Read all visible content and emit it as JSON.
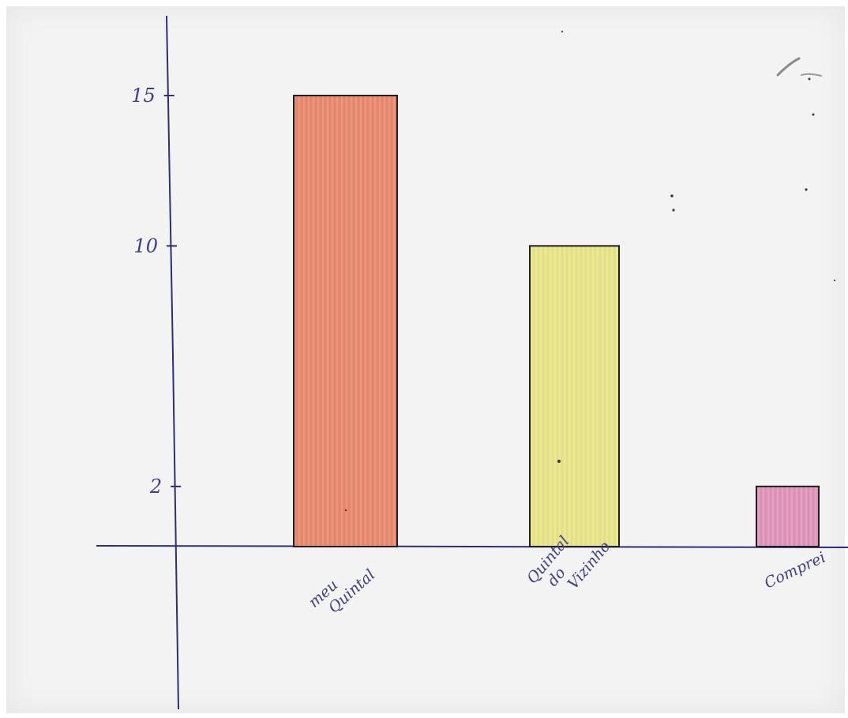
{
  "chart_data": {
    "type": "bar",
    "categories": [
      "meu Quintal",
      "Quintal do Vizinho",
      "Comprei"
    ],
    "values": [
      15,
      10,
      2
    ],
    "ytick_labels": [
      "15",
      "10",
      "2"
    ],
    "title": "",
    "xlabel": "",
    "ylabel": "",
    "ylim": [
      0,
      19
    ],
    "grid": false,
    "legend": "none",
    "colors": {
      "bars": [
        "#e98a6e",
        "#e7e48a",
        "#df94b8"
      ],
      "ink": "#2d2f6e",
      "bar_outline": "#1e1e24",
      "paper": "#f3f3f4"
    }
  }
}
